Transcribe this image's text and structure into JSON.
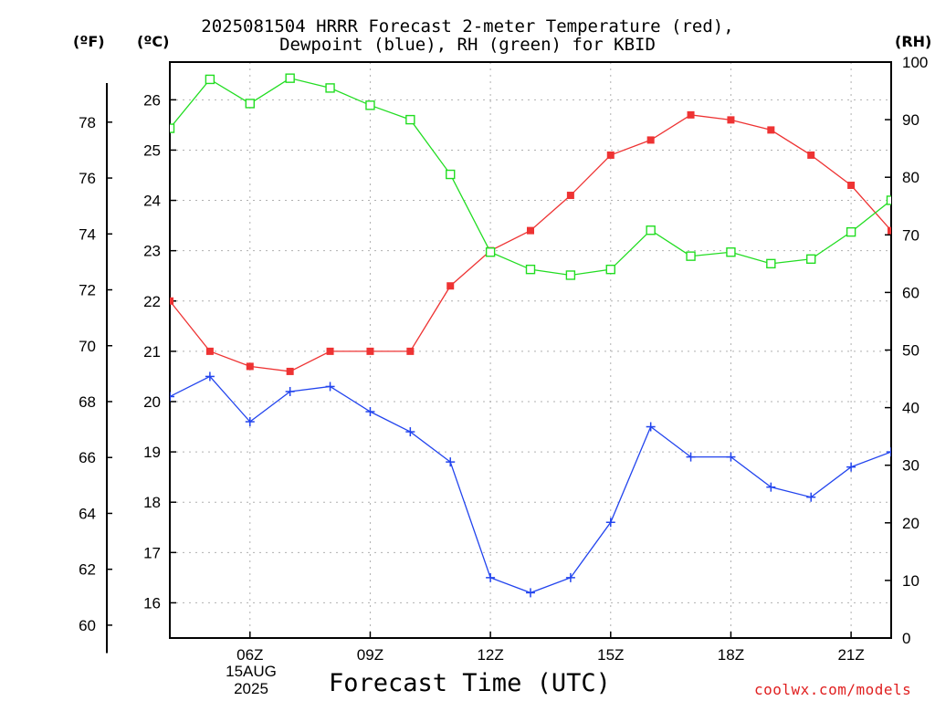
{
  "title": {
    "line1": "2025081504 HRRR Forecast 2-meter Temperature (red),",
    "line2": "Dewpoint (blue), RH (green) for KBID"
  },
  "units": {
    "fahrenheit": "(ºF)",
    "celsius": "(ºC)",
    "rh": "(RH)"
  },
  "xlabel": "Forecast Time (UTC)",
  "credit": "coolwx.com/models",
  "date_label": {
    "day": "15AUG",
    "year": "2025"
  },
  "chart_data": {
    "type": "line",
    "x_hours_utc": [
      4,
      5,
      6,
      7,
      8,
      9,
      10,
      11,
      12,
      13,
      14,
      15,
      16,
      17,
      18,
      19,
      20,
      21,
      22
    ],
    "x_range": [
      4,
      22
    ],
    "x_ticks": [
      {
        "hour": 6,
        "label": "06Z"
      },
      {
        "hour": 9,
        "label": "09Z"
      },
      {
        "hour": 12,
        "label": "12Z"
      },
      {
        "hour": 15,
        "label": "15Z"
      },
      {
        "hour": 18,
        "label": "18Z"
      },
      {
        "hour": 21,
        "label": "21Z"
      }
    ],
    "left_axis_c": {
      "range": [
        15.3,
        26.75
      ],
      "ticks": [
        16,
        17,
        18,
        19,
        20,
        21,
        22,
        23,
        24,
        25,
        26
      ]
    },
    "left_axis_f": {
      "ticks": [
        60,
        62,
        64,
        66,
        68,
        70,
        72,
        74,
        76,
        78
      ]
    },
    "right_axis_rh": {
      "range": [
        0,
        100
      ],
      "ticks": [
        0,
        10,
        20,
        30,
        40,
        50,
        60,
        70,
        80,
        90,
        100
      ]
    },
    "grid": true,
    "series": [
      {
        "key": "temperature",
        "axis": "C",
        "color": "#ee3333",
        "marker": "filled-square",
        "values": [
          22.0,
          21.0,
          20.7,
          20.6,
          21.0,
          21.0,
          21.0,
          22.3,
          23.0,
          23.4,
          24.1,
          24.9,
          25.2,
          25.7,
          25.6,
          25.4,
          24.9,
          24.3,
          23.4
        ]
      },
      {
        "key": "dewpoint",
        "axis": "C",
        "color": "#2244ee",
        "marker": "plus",
        "values": [
          20.1,
          20.5,
          19.6,
          20.2,
          20.3,
          19.8,
          19.4,
          18.8,
          16.5,
          16.2,
          16.5,
          17.6,
          19.5,
          18.9,
          18.9,
          18.3,
          18.1,
          18.7,
          19.0
        ]
      },
      {
        "key": "rh",
        "axis": "RH",
        "color": "#22dd22",
        "marker": "open-square",
        "values": [
          88.5,
          97.0,
          92.8,
          97.2,
          95.5,
          92.5,
          90.0,
          80.5,
          67.0,
          64.0,
          63.0,
          64.0,
          70.8,
          66.3,
          67.0,
          65.0,
          65.8,
          70.5,
          76.0
        ]
      }
    ]
  }
}
